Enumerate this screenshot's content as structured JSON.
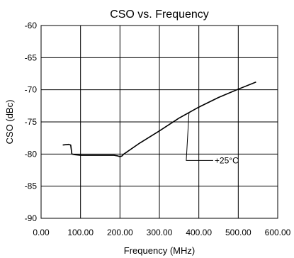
{
  "chart_data": {
    "type": "line",
    "title": "CSO vs. Frequency",
    "xlabel": "Frequency (MHz)",
    "ylabel": "CSO (dBc)",
    "xlim": [
      0,
      600
    ],
    "ylim": [
      -90,
      -60
    ],
    "x_ticks": [
      0,
      100,
      200,
      300,
      400,
      500,
      600
    ],
    "x_tick_labels": [
      "0.00",
      "100.00",
      "200.00",
      "300.00",
      "400.00",
      "500.00",
      "600.00"
    ],
    "y_ticks": [
      -90,
      -85,
      -80,
      -75,
      -70,
      -65,
      -60
    ],
    "y_tick_labels": [
      "-90",
      "-85",
      "-80",
      "-75",
      "-70",
      "-65",
      "-60"
    ],
    "grid": true,
    "series": [
      {
        "name": "+25°C",
        "color": "#000000",
        "x": [
          55,
          70,
          75,
          78,
          85,
          100,
          150,
          185,
          195,
          200,
          205,
          210,
          250,
          300,
          350,
          400,
          450,
          500,
          545
        ],
        "y": [
          -78.6,
          -78.5,
          -78.6,
          -80.0,
          -80.1,
          -80.2,
          -80.2,
          -80.2,
          -80.3,
          -80.4,
          -80.3,
          -80.0,
          -78.3,
          -76.4,
          -74.4,
          -72.7,
          -71.2,
          -69.9,
          -68.8
        ]
      }
    ],
    "annotations": [
      {
        "text": "+25°C",
        "series": 0,
        "point_x": 375,
        "point_y": -73.6,
        "label_x": 440,
        "label_y": -81.0
      }
    ]
  }
}
